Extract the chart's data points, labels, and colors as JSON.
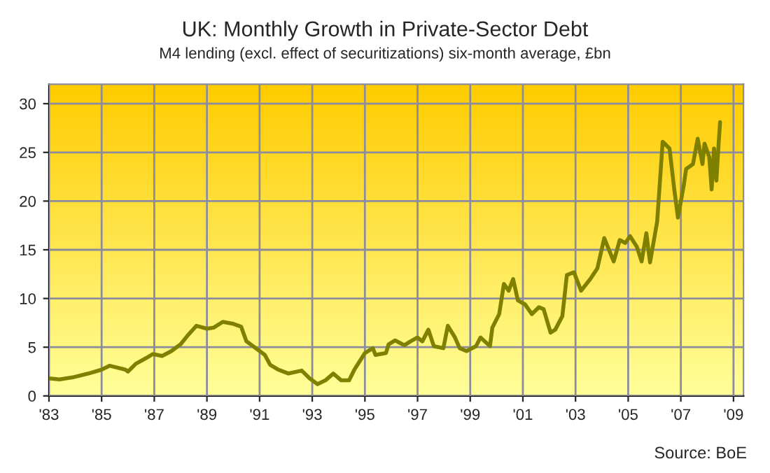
{
  "chart_data": {
    "type": "line",
    "title": "UK: Monthly Growth in Private-Sector Debt",
    "subtitle": "M4 lending (excl. effect of securitizations) six-month average, £bn",
    "annotations": [
      "Source: BoE"
    ],
    "x": [
      1983.0,
      1983.4,
      1983.9,
      1984.5,
      1985.0,
      1985.3,
      1985.9,
      1986.0,
      1986.3,
      1986.7,
      1986.95,
      1987.3,
      1987.65,
      1988.0,
      1988.3,
      1988.6,
      1989.0,
      1989.25,
      1989.6,
      1990.0,
      1990.3,
      1990.5,
      1990.85,
      1991.2,
      1991.4,
      1991.7,
      1992.1,
      1992.6,
      1992.9,
      1993.2,
      1993.5,
      1993.8,
      1994.1,
      1994.4,
      1994.6,
      1995.0,
      1995.3,
      1995.4,
      1995.8,
      1995.9,
      1996.15,
      1996.5,
      1996.73,
      1997.0,
      1997.18,
      1997.41,
      1997.62,
      1997.98,
      1998.15,
      1998.42,
      1998.6,
      1998.86,
      1999.22,
      1999.39,
      1999.75,
      1999.84,
      2000.1,
      2000.28,
      2000.46,
      2000.63,
      2000.81,
      2001.08,
      2001.34,
      2001.61,
      2001.79,
      2002.05,
      2002.23,
      2002.5,
      2002.67,
      2002.94,
      2003.21,
      2003.56,
      2003.83,
      2004.09,
      2004.45,
      2004.68,
      2004.89,
      2005.07,
      2005.33,
      2005.51,
      2005.69,
      2005.83,
      2006.1,
      2006.31,
      2006.57,
      2006.75,
      2006.89,
      2007.11,
      2007.2,
      2007.46,
      2007.64,
      2007.82,
      2007.9,
      2008.08,
      2008.17,
      2008.26,
      2008.35,
      2008.44,
      2008.49
    ],
    "series": [
      {
        "color": "#808000",
        "values": [
          1.8,
          1.7,
          1.9,
          2.3,
          2.7,
          3.1,
          2.7,
          2.5,
          3.3,
          3.9,
          4.3,
          4.1,
          4.6,
          5.3,
          6.3,
          7.2,
          6.9,
          7.0,
          7.6,
          7.4,
          7.1,
          5.6,
          4.9,
          4.2,
          3.2,
          2.7,
          2.3,
          2.6,
          1.8,
          1.2,
          1.6,
          2.3,
          1.6,
          1.6,
          2.7,
          4.4,
          4.9,
          4.2,
          4.4,
          5.3,
          5.7,
          5.2,
          5.6,
          6.0,
          5.6,
          6.8,
          5.1,
          4.9,
          7.2,
          6.0,
          4.9,
          4.6,
          5.1,
          6.0,
          5.1,
          7.0,
          8.4,
          11.5,
          10.8,
          12.0,
          9.8,
          9.4,
          8.4,
          9.1,
          8.9,
          6.5,
          6.8,
          8.2,
          12.4,
          12.7,
          10.8,
          12.0,
          13.1,
          16.2,
          13.8,
          16.0,
          15.7,
          16.4,
          15.3,
          13.8,
          16.7,
          13.7,
          17.9,
          26.1,
          25.4,
          21.2,
          18.3,
          21.6,
          23.3,
          23.8,
          26.4,
          23.8,
          25.9,
          24.5,
          21.2,
          25.4,
          22.1,
          26.1,
          28.1
        ]
      }
    ],
    "xlim": [
      1983,
      2009.38
    ],
    "ylim": [
      0,
      32
    ],
    "xticks": [
      {
        "value": 1983,
        "label": "'83"
      },
      {
        "value": 1985,
        "label": "'85"
      },
      {
        "value": 1987,
        "label": "'87"
      },
      {
        "value": 1989,
        "label": "'89"
      },
      {
        "value": 1991,
        "label": "'91"
      },
      {
        "value": 1993,
        "label": "'93"
      },
      {
        "value": 1995,
        "label": "'95"
      },
      {
        "value": 1997,
        "label": "'97"
      },
      {
        "value": 1999,
        "label": "'99"
      },
      {
        "value": 2001,
        "label": "'01"
      },
      {
        "value": 2003,
        "label": "'03"
      },
      {
        "value": 2005,
        "label": "'05"
      },
      {
        "value": 2007,
        "label": "'07"
      },
      {
        "value": 2009,
        "label": "'09"
      }
    ],
    "yticks": [
      0,
      5,
      10,
      15,
      20,
      25,
      30
    ],
    "grid": true,
    "marker": "none",
    "line_style": "solid",
    "legend": false
  }
}
